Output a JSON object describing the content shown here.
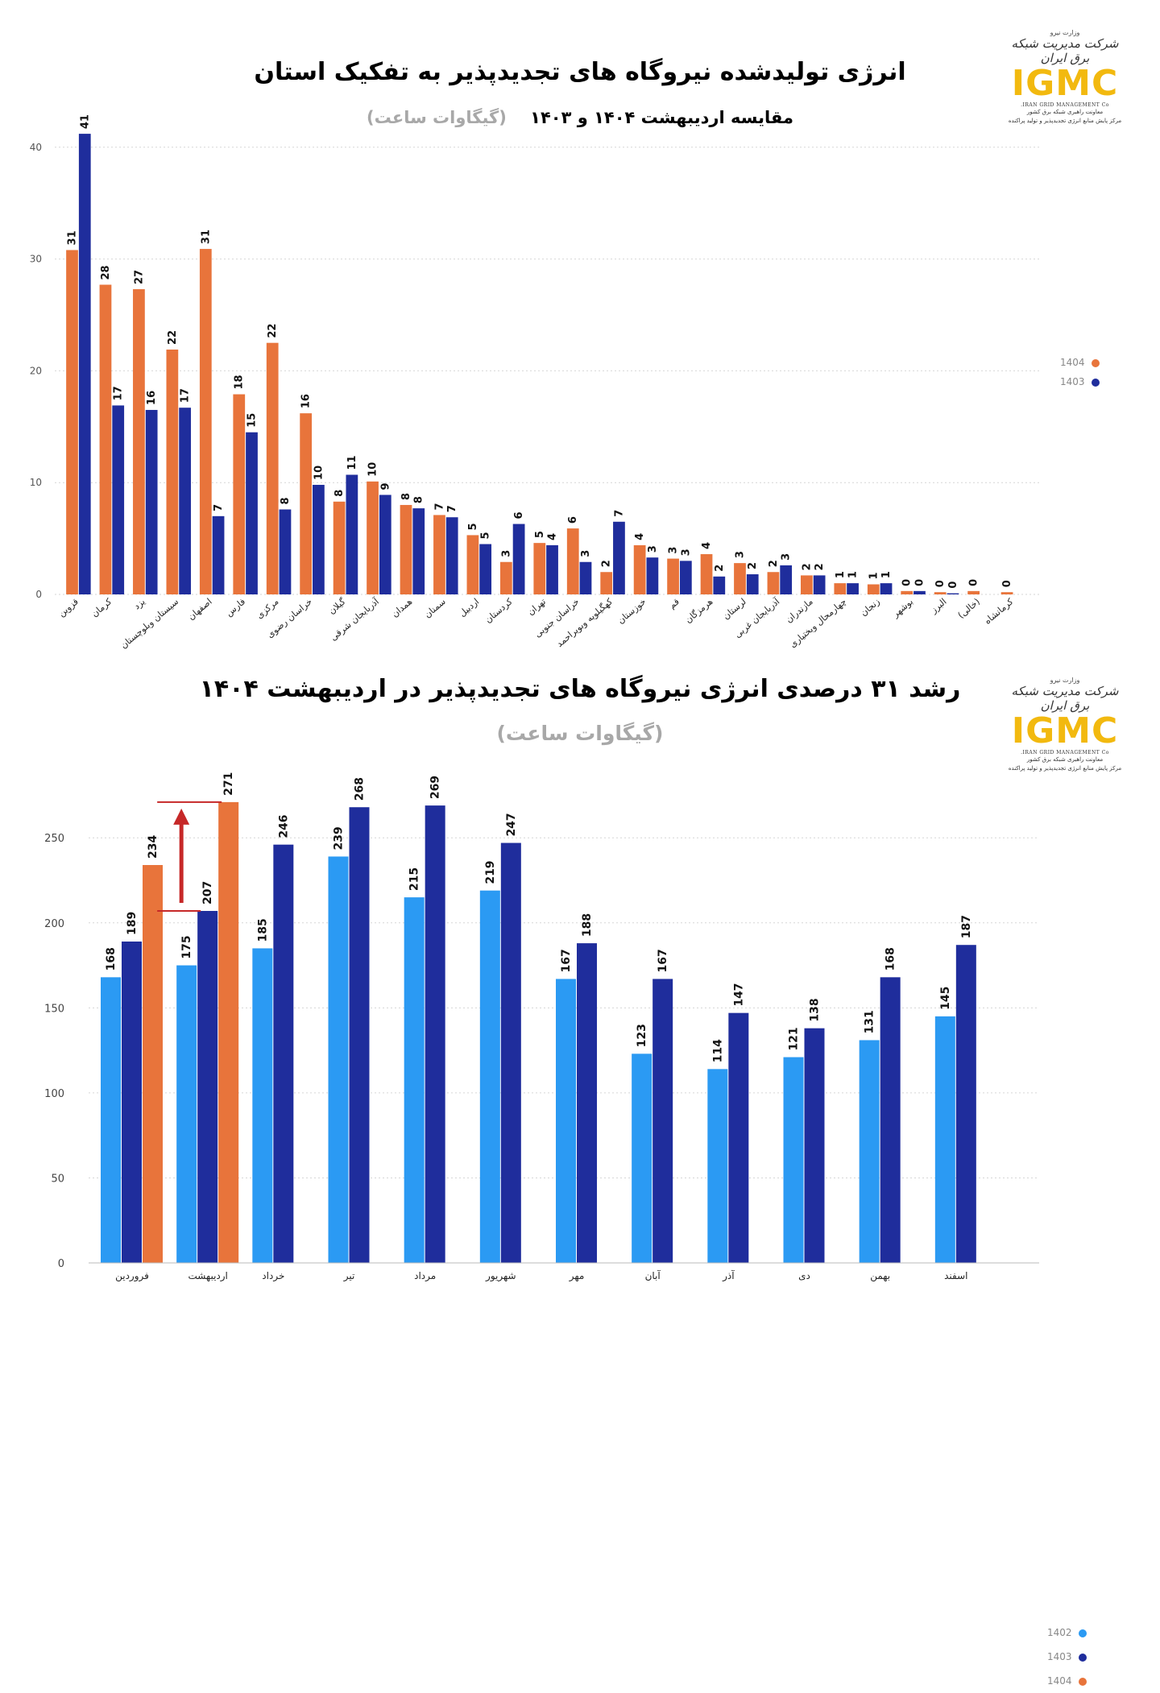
{
  "panel1": {
    "title": "انرژی تولیدشده  نیروگاه های تجدیدپذیر به تفکیک استان",
    "subtitle_main": "مقایسه اردیبهشت ۱۴۰۴ و ۱۴۰۳",
    "subtitle_unit": "(گیگاوات ساعت)",
    "logo": {
      "script": "شرکت مدیریت شبکه برق ایران",
      "ministry": "وزارت نیرو",
      "brand": "IGMC",
      "english": "IRAN GRID MANAGEMENT Co.",
      "line1": "معاونت راهبری شبکه برق کشور",
      "line2": "مرکز پایش منابع انرژی تجدیدپذیر و تولید پراکنده"
    },
    "legend": [
      {
        "label": "1404",
        "color": "#e8743b"
      },
      {
        "label": "1403",
        "color": "#1f2d9c"
      }
    ]
  },
  "panel2": {
    "title": "رشد ۳۱ درصدی انرژی نیروگاه های تجدیدپذیر در اردیبهشت ۱۴۰۴",
    "subtitle": "(گیگاوات ساعت)",
    "logo": {
      "script": "شرکت مدیریت شبکه برق ایران",
      "ministry": "وزارت نیرو",
      "brand": "IGMC",
      "english": "IRAN GRID MANAGEMENT Co.",
      "line1": "معاونت راهبری شبکه برق کشور",
      "line2": "مرکز پایش منابع انرژی تجدیدپذیر و تولید پراکنده"
    },
    "legend": [
      {
        "label": "1402",
        "color": "#2b9af3"
      },
      {
        "label": "1403",
        "color": "#1f2d9c"
      },
      {
        "label": "1404",
        "color": "#e8743b"
      }
    ]
  },
  "chart_data": [
    {
      "type": "bar",
      "title": "انرژی تولیدشده  نیروگاه های تجدیدپذیر به تفکیک استان",
      "subtitle": "مقایسه اردیبهشت ۱۴۰۴ و ۱۴۰۳ (گیگاوات ساعت)",
      "categories": [
        "قزوین",
        "کرمان",
        "یزد",
        "سیستان وبلوچستان",
        "اصفهان",
        "فارس",
        "مرکزی",
        "خراسان رضوی",
        "گیلان",
        "آذربایجان شرقی",
        "همدان",
        "سمنان",
        "اردبیل",
        "کردستان",
        "تهران",
        "خراسان جنوبی",
        "کهگیلویه وبویراحمد",
        "خوزستان",
        "قم",
        "هرمزگان",
        "لرستان",
        "آذربایجان غربی",
        "مازندران",
        "چهارمحال وبختیاری",
        "زنجان",
        "بوشهر",
        "البرز",
        "(خالی)",
        "کرمانشاه"
      ],
      "series": [
        {
          "name": "1404",
          "color": "#e8743b",
          "values": [
            30.8,
            27.7,
            27.3,
            21.9,
            30.9,
            17.9,
            22.5,
            16.2,
            8.3,
            10.1,
            8.0,
            7.1,
            5.3,
            2.9,
            4.6,
            5.9,
            2.0,
            4.4,
            3.2,
            3.6,
            2.8,
            2.0,
            1.7,
            1.0,
            0.9,
            0.3,
            0.2,
            0.3,
            0.2
          ],
          "labels": [
            "31",
            "28",
            "27",
            "22",
            "31",
            "18",
            "22",
            "16",
            "8",
            "10",
            "8",
            "7",
            "5",
            "3",
            "5",
            "6",
            "2",
            "4",
            "3",
            "4",
            "3",
            "2",
            "2",
            "1",
            "1",
            "0",
            "0",
            "0",
            "0"
          ]
        },
        {
          "name": "1403",
          "color": "#1f2d9c",
          "values": [
            41.2,
            16.9,
            16.5,
            16.7,
            7.0,
            14.5,
            7.6,
            9.8,
            10.7,
            8.9,
            7.7,
            6.9,
            4.5,
            6.3,
            4.4,
            2.9,
            6.5,
            3.3,
            3.0,
            1.6,
            1.8,
            2.6,
            1.7,
            1.0,
            1.0,
            0.3,
            0.1,
            null,
            null
          ],
          "labels": [
            "41",
            "17",
            "16",
            "17",
            "7",
            "15",
            "8",
            "10",
            "11",
            "9",
            "8",
            "7",
            "5",
            "6",
            "4",
            "3",
            "7",
            "3",
            "3",
            "2",
            "2",
            "3",
            "2",
            "1",
            "1",
            "0",
            "0",
            null,
            null
          ]
        }
      ],
      "ylim": [
        0,
        42
      ],
      "yticks": [
        0,
        10,
        20,
        30,
        40
      ],
      "grid": true,
      "legend_position": "right"
    },
    {
      "type": "bar",
      "title": "رشد ۳۱ درصدی انرژی نیروگاه های تجدیدپذیر در اردیبهشت ۱۴۰۴",
      "subtitle": "(گیگاوات ساعت)",
      "categories": [
        "فروردین",
        "اردیبهشت",
        "خرداد",
        "تیر",
        "مرداد",
        "شهریور",
        "مهر",
        "آبان",
        "آذر",
        "دی",
        "بهمن",
        "اسفند"
      ],
      "series": [
        {
          "name": "1402",
          "color": "#2b9af3",
          "values": [
            168,
            175,
            185,
            239,
            215,
            219,
            167,
            123,
            114,
            121,
            131,
            145
          ]
        },
        {
          "name": "1403",
          "color": "#1f2d9c",
          "values": [
            189,
            207,
            246,
            268,
            269,
            247,
            188,
            167,
            147,
            138,
            168,
            187
          ]
        },
        {
          "name": "1404",
          "color": "#e8743b",
          "values": [
            234,
            271,
            null,
            null,
            null,
            null,
            null,
            null,
            null,
            null,
            null,
            null
          ]
        }
      ],
      "ylim": [
        0,
        270
      ],
      "yticks": [
        0,
        50,
        100,
        150,
        200,
        250
      ],
      "grid": true,
      "legend_position": "right",
      "annotation": "growth arrow from 207 to 271 over اردیبهشت"
    }
  ]
}
